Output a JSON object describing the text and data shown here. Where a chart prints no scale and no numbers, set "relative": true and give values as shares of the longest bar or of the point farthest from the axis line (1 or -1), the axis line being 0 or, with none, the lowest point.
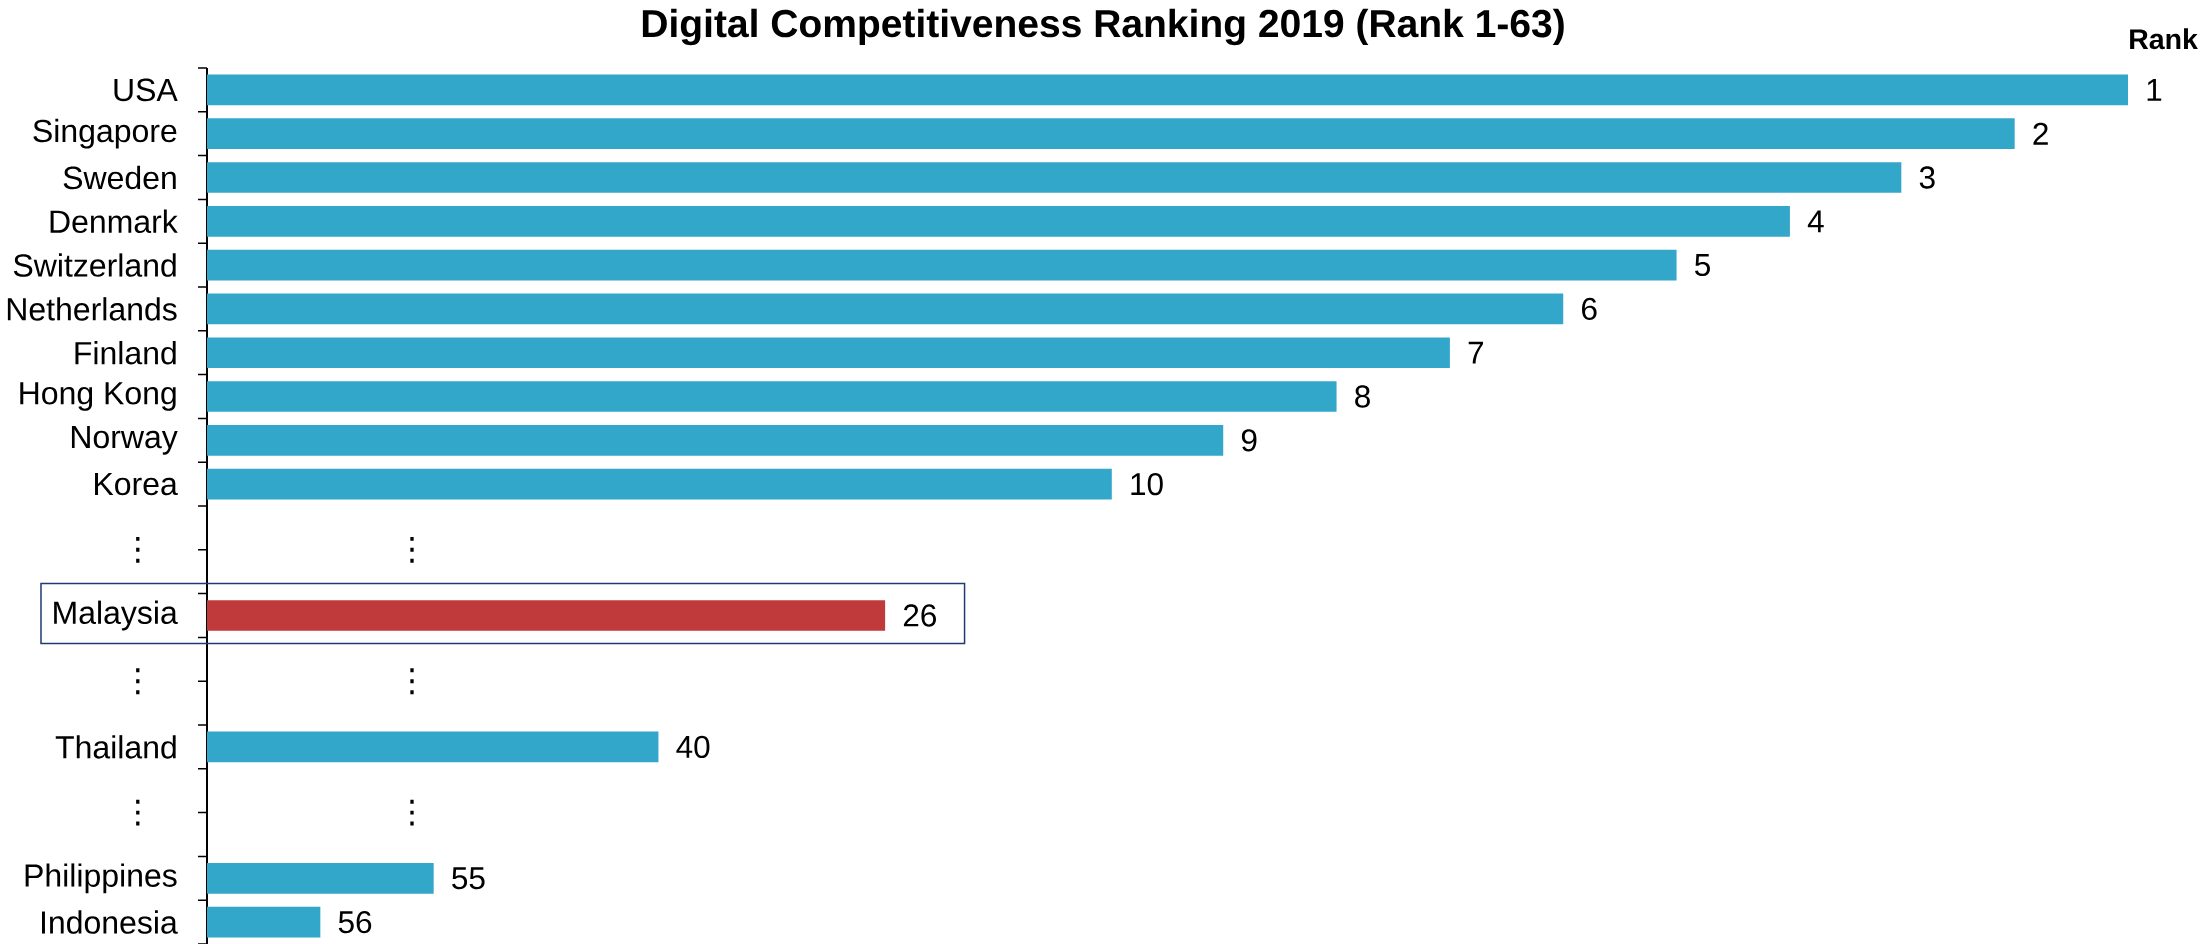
{
  "chart_data": {
    "type": "bar",
    "orientation": "horizontal",
    "relative": true,
    "title": "Digital Competitiveness Ranking 2019 (Rank 1-63)",
    "categories": [
      "USA",
      "Singapore",
      "Sweden",
      "Denmark",
      "Switzerland",
      "Netherlands",
      "Finland",
      "Hong Kong",
      "Norway",
      "Korea",
      "⋮",
      null,
      "Malaysia",
      "⋮",
      null,
      "Thailand",
      "⋮",
      null,
      "Philippines",
      "Indonesia"
    ],
    "values": [
      1,
      0.941,
      0.882,
      0.824,
      0.765,
      0.706,
      0.647,
      0.588,
      0.529,
      0.471,
      null,
      null,
      0.353,
      null,
      null,
      0.235,
      null,
      null,
      0.118,
      0.059
    ],
    "colors": [
      "#33a7ca",
      "#33a7ca",
      "#33a7ca",
      "#33a7ca",
      "#33a7ca",
      "#33a7ca",
      "#33a7ca",
      "#33a7ca",
      "#33a7ca",
      "#33a7ca",
      null,
      null,
      "#c0393b",
      null,
      null,
      "#33a7ca",
      null,
      null,
      "#33a7ca",
      "#33a7ca"
    ],
    "annotations": [
      "Rank",
      "⋮",
      "⋮",
      "⋮",
      {
        "text": "1",
        "x": 1,
        "y": "USA"
      },
      {
        "text": "2",
        "x": 0.941,
        "y": "Singapore"
      },
      {
        "text": "3",
        "x": 0.882,
        "y": "Sweden"
      },
      {
        "text": "4",
        "x": 0.824,
        "y": "Denmark"
      },
      {
        "text": "5",
        "x": 0.765,
        "y": "Switzerland"
      },
      {
        "text": "6",
        "x": 0.706,
        "y": "Netherlands"
      },
      {
        "text": "7",
        "x": 0.647,
        "y": "Finland"
      },
      {
        "text": "8",
        "x": 0.588,
        "y": "Hong Kong"
      },
      {
        "text": "9",
        "x": 0.529,
        "y": "Norway"
      },
      {
        "text": "10",
        "x": 0.471,
        "y": "Korea"
      },
      {
        "text": "26",
        "x": 0.353,
        "y": "Malaysia"
      },
      {
        "text": "40",
        "x": 0.235,
        "y": "Thailand"
      },
      {
        "text": "55",
        "x": 0.118,
        "y": "Philippines"
      },
      {
        "text": "56",
        "x": 0.059,
        "y": "Indonesia"
      }
    ]
  }
}
